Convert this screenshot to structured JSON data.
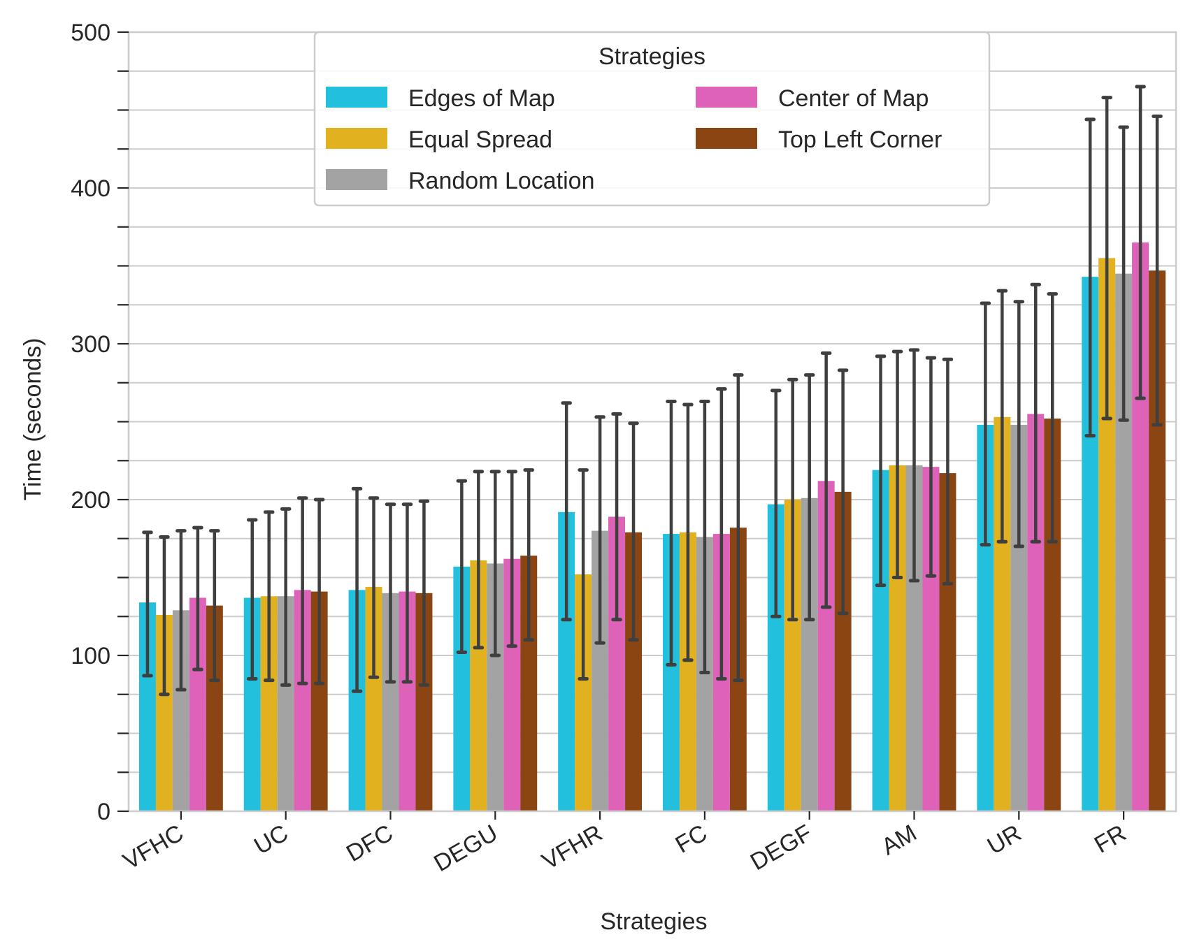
{
  "chart_data": {
    "type": "bar",
    "title": "",
    "xlabel": "Strategies",
    "ylabel": "Time (seconds)",
    "ylim": [
      0,
      500
    ],
    "yticks": [
      0,
      100,
      200,
      300,
      400,
      500
    ],
    "grid": true,
    "legend": {
      "title": "Strategies",
      "placement": "top-center"
    },
    "categories": [
      "VFHC",
      "UC",
      "DFC",
      "DEGU",
      "VFHR",
      "FC",
      "DEGF",
      "AM",
      "UR",
      "FR"
    ],
    "series": [
      {
        "name": "Edges of Map",
        "color": "#22c0dd",
        "values": [
          134,
          137,
          142,
          157,
          192,
          178,
          197,
          219,
          248,
          343
        ],
        "err_low": [
          87,
          85,
          77,
          102,
          123,
          94,
          125,
          145,
          171,
          241
        ],
        "err_high": [
          179,
          187,
          207,
          212,
          262,
          263,
          270,
          292,
          326,
          444
        ]
      },
      {
        "name": "Equal Spread",
        "color": "#e2b11f",
        "values": [
          126,
          138,
          144,
          161,
          152,
          179,
          200,
          222,
          253,
          355
        ],
        "err_low": [
          75,
          84,
          86,
          105,
          85,
          97,
          123,
          150,
          173,
          252
        ],
        "err_high": [
          176,
          192,
          201,
          218,
          219,
          261,
          277,
          295,
          334,
          458
        ]
      },
      {
        "name": "Random Location",
        "color": "#a3a3a3",
        "values": [
          129,
          138,
          140,
          159,
          180,
          176,
          201,
          222,
          248,
          345
        ],
        "err_low": [
          78,
          81,
          83,
          100,
          108,
          89,
          123,
          148,
          170,
          251
        ],
        "err_high": [
          180,
          194,
          197,
          218,
          253,
          263,
          280,
          296,
          327,
          439
        ]
      },
      {
        "name": "Center of Map",
        "color": "#de62b8",
        "values": [
          137,
          142,
          141,
          162,
          189,
          178,
          212,
          221,
          255,
          365
        ],
        "err_low": [
          91,
          82,
          83,
          106,
          123,
          85,
          131,
          151,
          173,
          265
        ],
        "err_high": [
          182,
          201,
          197,
          218,
          255,
          271,
          294,
          291,
          338,
          465
        ]
      },
      {
        "name": "Top Left Corner",
        "color": "#8b4513",
        "values": [
          132,
          141,
          140,
          164,
          179,
          182,
          205,
          217,
          252,
          347
        ],
        "err_low": [
          84,
          82,
          81,
          110,
          110,
          84,
          127,
          146,
          173,
          248
        ],
        "err_high": [
          180,
          200,
          199,
          219,
          249,
          280,
          283,
          290,
          332,
          446
        ]
      }
    ],
    "errorbar_color": "#3f3f3f"
  }
}
